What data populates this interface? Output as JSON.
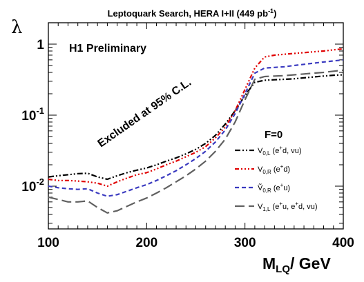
{
  "chart_data": {
    "type": "line",
    "title": "Leptoquark Search, HERA I+II (449 pb",
    "title_sup": "-1",
    "title_end": ")",
    "xlabel_main": "M",
    "xlabel_sub": "LQ",
    "xlabel_unit": "/ GeV",
    "ylabel": "λ",
    "xlim": [
      100,
      400
    ],
    "ylim": [
      0.0025,
      2.0
    ],
    "yscale": "log",
    "x_ticks": [
      {
        "v": 100,
        "label": "100"
      },
      {
        "v": 200,
        "label": "200"
      },
      {
        "v": 300,
        "label": "300"
      },
      {
        "v": 400,
        "label": "400"
      }
    ],
    "y_ticks": [
      {
        "v": 0.01,
        "base": "10",
        "exp": "-2"
      },
      {
        "v": 0.1,
        "base": "10",
        "exp": "-1"
      },
      {
        "v": 1,
        "base": "1",
        "exp": ""
      }
    ],
    "annotations": {
      "experiment": "H1 Preliminary",
      "excluded": "Excluded at 95% C.L."
    },
    "legend": {
      "title": "F=0",
      "entries": [
        {
          "main": "V",
          "sub": "0,L",
          "rest": " (e",
          "sup1": "+",
          "rest2": "d, νu)",
          "color": "#000000",
          "dash": "8,3,2,3,2,3"
        },
        {
          "main": "V",
          "sub": "0,R",
          "rest": " (e",
          "sup1": "+",
          "rest2": "d)",
          "color": "#e00000",
          "dash": "6,3,2,3,2,3,2,3"
        },
        {
          "main": "Ṽ",
          "sub": "0,R",
          "rest": " (e",
          "sup1": "+",
          "rest2": "u)",
          "color": "#3a3ac0",
          "dash": "6,4"
        },
        {
          "main": "V",
          "sub": "1,L",
          "rest": " (e",
          "sup1": "+",
          "rest2": "u, e",
          "sup2": "+",
          "rest3": "d, νu)",
          "color": "#606060",
          "dash": "14,6"
        }
      ]
    },
    "series": [
      {
        "name": "V0,L (e+d, νu)",
        "color": "#000000",
        "x": [
          100,
          110,
          120,
          130,
          140,
          150,
          160,
          170,
          180,
          190,
          200,
          210,
          220,
          230,
          240,
          250,
          260,
          270,
          280,
          290,
          300,
          310,
          320,
          330,
          340,
          350,
          360,
          370,
          380,
          390,
          400
        ],
        "values": [
          0.0135,
          0.014,
          0.0145,
          0.015,
          0.0152,
          0.0135,
          0.0125,
          0.014,
          0.0155,
          0.0168,
          0.018,
          0.02,
          0.0225,
          0.025,
          0.0285,
          0.033,
          0.04,
          0.052,
          0.075,
          0.115,
          0.19,
          0.29,
          0.31,
          0.315,
          0.32,
          0.325,
          0.335,
          0.345,
          0.355,
          0.365,
          0.37
        ]
      },
      {
        "name": "V0,R (e+d)",
        "color": "#e00000",
        "x": [
          100,
          110,
          120,
          130,
          140,
          150,
          160,
          170,
          180,
          190,
          200,
          210,
          220,
          230,
          240,
          250,
          260,
          270,
          280,
          290,
          300,
          310,
          320,
          330,
          340,
          350,
          360,
          370,
          380,
          390,
          400
        ],
        "values": [
          0.0125,
          0.012,
          0.012,
          0.0118,
          0.0115,
          0.011,
          0.01,
          0.0115,
          0.013,
          0.0145,
          0.0155,
          0.0175,
          0.02,
          0.0225,
          0.026,
          0.03,
          0.036,
          0.048,
          0.068,
          0.115,
          0.23,
          0.46,
          0.66,
          0.7,
          0.72,
          0.74,
          0.76,
          0.78,
          0.8,
          0.83,
          0.86
        ]
      },
      {
        "name": "Ṽ0,R (e+u)",
        "color": "#3a3ac0",
        "x": [
          100,
          110,
          120,
          130,
          140,
          150,
          160,
          170,
          180,
          190,
          200,
          210,
          220,
          230,
          240,
          250,
          260,
          270,
          280,
          290,
          300,
          310,
          320,
          330,
          340,
          350,
          360,
          370,
          380,
          390,
          400
        ],
        "values": [
          0.01,
          0.0095,
          0.0092,
          0.009,
          0.0092,
          0.008,
          0.0072,
          0.0076,
          0.0085,
          0.0095,
          0.0105,
          0.012,
          0.014,
          0.0165,
          0.02,
          0.0245,
          0.031,
          0.042,
          0.062,
          0.105,
          0.2,
          0.39,
          0.46,
          0.47,
          0.48,
          0.5,
          0.52,
          0.54,
          0.56,
          0.58,
          0.6
        ]
      },
      {
        "name": "V1,L (e+u, e+d, νu)",
        "color": "#606060",
        "x": [
          100,
          110,
          120,
          130,
          140,
          150,
          160,
          170,
          180,
          190,
          200,
          210,
          220,
          230,
          240,
          250,
          260,
          270,
          280,
          290,
          300,
          310,
          320,
          330,
          340,
          350,
          360,
          370,
          380,
          390,
          400
        ],
        "values": [
          0.007,
          0.0065,
          0.006,
          0.006,
          0.0062,
          0.005,
          0.0042,
          0.0045,
          0.0052,
          0.006,
          0.0068,
          0.008,
          0.0095,
          0.0115,
          0.014,
          0.0175,
          0.0225,
          0.031,
          0.046,
          0.08,
          0.165,
          0.32,
          0.35,
          0.355,
          0.36,
          0.37,
          0.38,
          0.39,
          0.4,
          0.415,
          0.43
        ]
      }
    ]
  }
}
